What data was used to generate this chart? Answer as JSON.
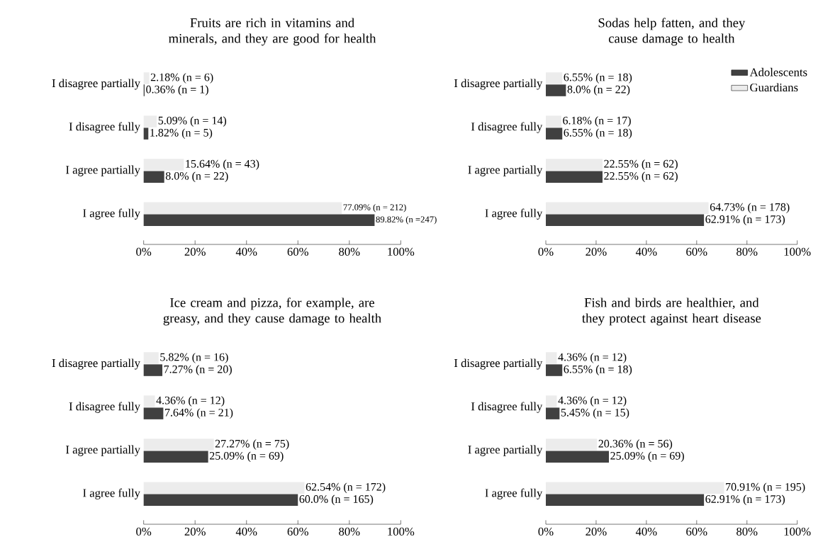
{
  "chart_data": [
    {
      "type": "bar",
      "orientation": "horizontal",
      "title": "Fruits are rich in vitamins and minerals, and they are good for health",
      "categories": [
        "I disagree partially",
        "I disagree fully",
        "I agree partially",
        "I agree fully"
      ],
      "xlim": [
        0,
        100
      ],
      "xticks": [
        {
          "value": 0,
          "label": "0%"
        },
        {
          "value": 20,
          "label": "20%"
        },
        {
          "value": 40,
          "label": "40%"
        },
        {
          "value": 60,
          "label": "60%"
        },
        {
          "value": 80,
          "label": "80%"
        },
        {
          "value": 100,
          "label": "100%"
        }
      ],
      "legend": false,
      "series": [
        {
          "color": "#ececec",
          "values": [
            2.18,
            5.09,
            15.64,
            77.09
          ],
          "value_labels": [
            "2.18% (n = 6)",
            "5.09% (n = 14)",
            "15.64% (n = 43)",
            "77.09% (n = 212)"
          ]
        },
        {
          "color": "#404040",
          "values": [
            0.36,
            1.82,
            8.0,
            89.82
          ],
          "value_labels": [
            "0.36% (n = 1)",
            "1.82% (n = 5)",
            "8.0% (n = 22)",
            "89.82% (n =247)"
          ]
        }
      ]
    },
    {
      "type": "bar",
      "orientation": "horizontal",
      "title": "Sodas help fatten, and they cause damage to health",
      "categories": [
        "I disagree partially",
        "I disagree fully",
        "I agree partially",
        "I agree fully"
      ],
      "xlim": [
        0,
        100
      ],
      "xticks": [
        {
          "value": 0,
          "label": "0%"
        },
        {
          "value": 20,
          "label": "20%"
        },
        {
          "value": 40,
          "label": "40%"
        },
        {
          "value": 60,
          "label": "60%"
        },
        {
          "value": 80,
          "label": "80%"
        },
        {
          "value": 100,
          "label": "100%"
        }
      ],
      "legend": "top right",
      "series": [
        {
          "name": "Guardians",
          "color": "#ececec",
          "values": [
            6.55,
            6.18,
            22.55,
            64.73
          ],
          "value_labels": [
            "6.55% (n = 18)",
            "6.18% (n = 17)",
            "22.55% (n = 62)",
            "64.73% (n = 178)"
          ]
        },
        {
          "name": "Adolescents",
          "color": "#404040",
          "values": [
            8.0,
            6.55,
            22.55,
            62.91
          ],
          "value_labels": [
            "8.0% (n = 22)",
            "6.55% (n = 18)",
            "22.55% (n = 62)",
            "62.91% (n = 173)"
          ]
        }
      ]
    },
    {
      "type": "bar",
      "orientation": "horizontal",
      "title": "Ice cream and pizza, for example, are greasy, and they cause damage to health",
      "categories": [
        "I disagree partially",
        "I disagree fully",
        "I agree partially",
        "I agree fully"
      ],
      "xlim": [
        0,
        100
      ],
      "xticks": [
        {
          "value": 0,
          "label": "0%"
        },
        {
          "value": 20,
          "label": "20%"
        },
        {
          "value": 40,
          "label": "40%"
        },
        {
          "value": 60,
          "label": "60%"
        },
        {
          "value": 80,
          "label": "80%"
        },
        {
          "value": 100,
          "label": "100%"
        }
      ],
      "legend": false,
      "series": [
        {
          "color": "#ececec",
          "values": [
            5.82,
            4.36,
            27.27,
            62.54
          ],
          "value_labels": [
            "5.82% (n = 16)",
            "4.36% (n = 12)",
            "27.27% (n = 75)",
            "62.54% (n = 172)"
          ]
        },
        {
          "color": "#404040",
          "values": [
            7.27,
            7.64,
            25.09,
            60.0
          ],
          "value_labels": [
            "7.27% (n = 20)",
            "7.64% (n = 21)",
            "25.09% (n = 69)",
            "60.0% (n = 165)"
          ]
        }
      ]
    },
    {
      "type": "bar",
      "orientation": "horizontal",
      "title": "Fish and birds are healthier, and they protect against heart disease",
      "categories": [
        "I disagree partially",
        "I disagree fully",
        "I agree partially",
        "I agree fully"
      ],
      "xlim": [
        0,
        100
      ],
      "xticks": [
        {
          "value": 0,
          "label": "0%"
        },
        {
          "value": 20,
          "label": "20%"
        },
        {
          "value": 40,
          "label": "40%"
        },
        {
          "value": 60,
          "label": "60%"
        },
        {
          "value": 80,
          "label": "80%"
        },
        {
          "value": 100,
          "label": "100%"
        }
      ],
      "legend": false,
      "series": [
        {
          "color": "#ececec",
          "values": [
            4.36,
            4.36,
            20.36,
            70.91
          ],
          "value_labels": [
            "4.36% (n = 12)",
            "4.36% (n = 12)",
            "20.36% (n = 56)",
            "70.91% (n = 195)"
          ]
        },
        {
          "color": "#404040",
          "values": [
            6.55,
            5.45,
            25.09,
            62.91
          ],
          "value_labels": [
            "6.55% (n = 18)",
            "5.45% (n = 15)",
            "25.09% (n = 69)",
            "62.91% (n = 173)"
          ]
        }
      ]
    }
  ]
}
